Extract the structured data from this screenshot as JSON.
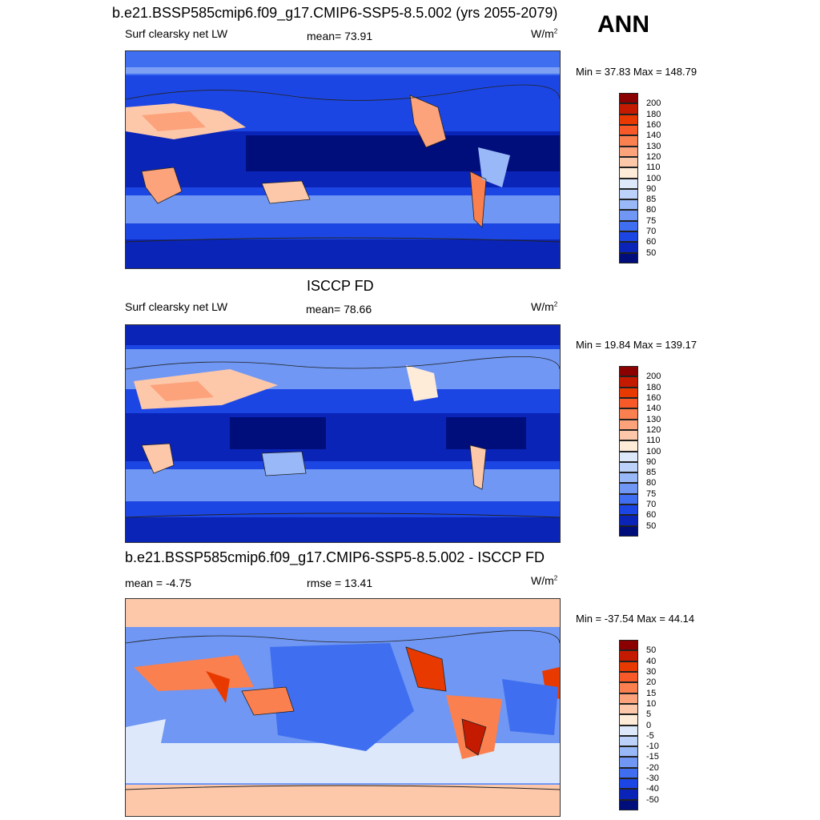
{
  "header": {
    "title": "b.e21.BSSP585cmip6.f09_g17.CMIP6-SSP5-8.5.002 (yrs 2055-2079)",
    "season": "ANN"
  },
  "panels": [
    {
      "id": "model",
      "title": "",
      "left_label": "Surf clearsky net LW",
      "center_label": "mean=  73.91",
      "units_base": "W/m",
      "units_exp": "2",
      "minmax": "Min =  37.83 Max = 148.79",
      "colorbar": "abs"
    },
    {
      "id": "obs",
      "title": "ISCCP FD",
      "left_label": "Surf clearsky net LW",
      "center_label": "mean=  78.66",
      "units_base": "W/m",
      "units_exp": "2",
      "minmax": "Min =  19.84 Max = 139.17",
      "colorbar": "abs"
    },
    {
      "id": "diff",
      "title": "b.e21.BSSP585cmip6.f09_g17.CMIP6-SSP5-8.5.002 - ISCCP FD",
      "left_label": "mean =  -4.75",
      "center_label": "rmse =  13.41",
      "units_base": "W/m",
      "units_exp": "2",
      "minmax": "Min = -37.54 Max =  44.14",
      "colorbar": "diff"
    }
  ],
  "colorbars": {
    "abs": {
      "labels": [
        "200",
        "180",
        "160",
        "140",
        "130",
        "120",
        "110",
        "100",
        "90",
        "85",
        "80",
        "75",
        "70",
        "60",
        "50"
      ],
      "colors": [
        "#8b0000",
        "#c41a00",
        "#e83a00",
        "#f75a28",
        "#fb8050",
        "#fca37c",
        "#fdc8aa",
        "#feebd8",
        "#dde9fb",
        "#bcd2fa",
        "#99b8f7",
        "#6f97f3",
        "#3f6ff0",
        "#1c46e4",
        "#0a24b8",
        "#000e7c"
      ]
    },
    "diff": {
      "labels": [
        "50",
        "40",
        "30",
        "20",
        "15",
        "10",
        "5",
        "0",
        "-5",
        "-10",
        "-15",
        "-20",
        "-30",
        "-40",
        "-50"
      ],
      "colors": [
        "#8b0000",
        "#c41a00",
        "#e83a00",
        "#f75a28",
        "#fb8050",
        "#fca37c",
        "#fdc8aa",
        "#feebd8",
        "#dde9fb",
        "#bcd2fa",
        "#99b8f7",
        "#6f97f3",
        "#3f6ff0",
        "#1c46e4",
        "#0a24b8",
        "#000e7c"
      ]
    }
  },
  "chart_data": [
    {
      "type": "heatmap",
      "title": "b.e21.BSSP585cmip6.f09_g17.CMIP6-SSP5-8.5.002 (yrs 2055-2079)",
      "variable": "Surf clearsky net LW",
      "units": "W/m2",
      "mean": 73.91,
      "min": 37.83,
      "max": 148.79,
      "levels": [
        50,
        60,
        70,
        75,
        80,
        85,
        90,
        100,
        110,
        120,
        130,
        140,
        160,
        180,
        200
      ]
    },
    {
      "type": "heatmap",
      "title": "ISCCP FD",
      "variable": "Surf clearsky net LW",
      "units": "W/m2",
      "mean": 78.66,
      "min": 19.84,
      "max": 139.17,
      "levels": [
        50,
        60,
        70,
        75,
        80,
        85,
        90,
        100,
        110,
        120,
        130,
        140,
        160,
        180,
        200
      ]
    },
    {
      "type": "heatmap",
      "title": "b.e21.BSSP585cmip6.f09_g17.CMIP6-SSP5-8.5.002 - ISCCP FD",
      "units": "W/m2",
      "mean": -4.75,
      "rmse": 13.41,
      "min": -37.54,
      "max": 44.14,
      "levels": [
        -50,
        -40,
        -30,
        -20,
        -15,
        -10,
        -5,
        0,
        5,
        10,
        15,
        20,
        30,
        40,
        50
      ]
    }
  ]
}
